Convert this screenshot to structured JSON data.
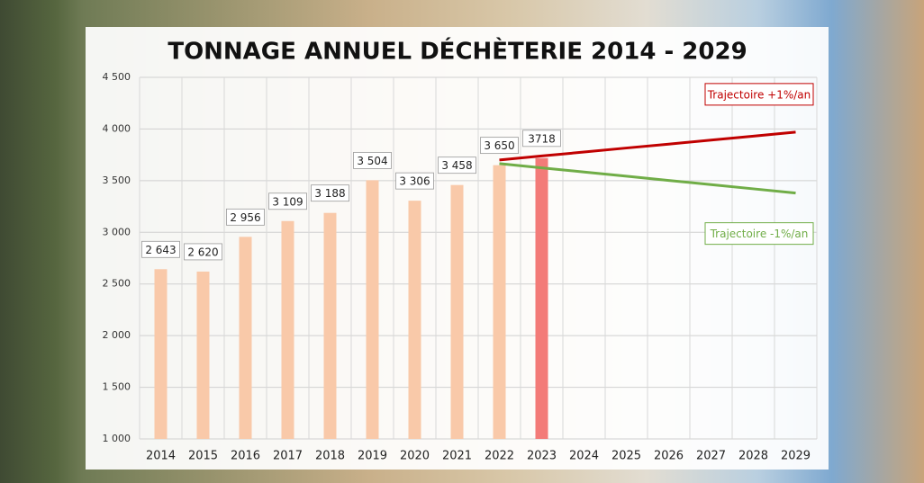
{
  "chart_data": {
    "type": "bar",
    "title": "TONNAGE ANNUEL DÉCHÈTERIE 2014 - 2029",
    "categories": [
      "2014",
      "2015",
      "2016",
      "2017",
      "2018",
      "2019",
      "2020",
      "2021",
      "2022",
      "2023",
      "2024",
      "2025",
      "2026",
      "2027",
      "2028",
      "2029"
    ],
    "ylim": [
      1000,
      4500
    ],
    "yticks": [
      {
        "value": 1000,
        "label": "1 000"
      },
      {
        "value": 1500,
        "label": "1 500"
      },
      {
        "value": 2000,
        "label": "2 000"
      },
      {
        "value": 2500,
        "label": "2 500"
      },
      {
        "value": 3000,
        "label": "3 000"
      },
      {
        "value": 3500,
        "label": "3 500"
      },
      {
        "value": 4000,
        "label": "4 000"
      },
      {
        "value": 4500,
        "label": "4 500"
      }
    ],
    "grid": true,
    "series": [
      {
        "type": "bar",
        "values": [
          2643,
          2620,
          2956,
          3109,
          3188,
          3504,
          3306,
          3458,
          3650,
          3718,
          null,
          null,
          null,
          null,
          null,
          null
        ],
        "value_labels": [
          "2 643",
          "2 620",
          "2 956",
          "3 109",
          "3 188",
          "3 504",
          "3 306",
          "3 458",
          "3 650",
          "3718",
          null,
          null,
          null,
          null,
          null,
          null
        ],
        "colors": [
          "#f9c9a9",
          "#f9c9a9",
          "#f9c9a9",
          "#f9c9a9",
          "#f9c9a9",
          "#f9c9a9",
          "#f9c9a9",
          "#f9c9a9",
          "#f9c9a9",
          "#f37b78"
        ]
      },
      {
        "type": "line",
        "name": "Trajectoire +1%/an",
        "color": "#c00000",
        "values": [
          null,
          null,
          null,
          null,
          null,
          null,
          null,
          null,
          3700,
          3739,
          3777,
          3816,
          3854,
          3893,
          3931,
          3970
        ]
      },
      {
        "type": "line",
        "name": "Trajectoire -1%/an",
        "color": "#70ad47",
        "values": [
          null,
          null,
          null,
          null,
          null,
          null,
          null,
          null,
          3665,
          3624,
          3584,
          3543,
          3502,
          3462,
          3421,
          3380
        ]
      }
    ]
  }
}
